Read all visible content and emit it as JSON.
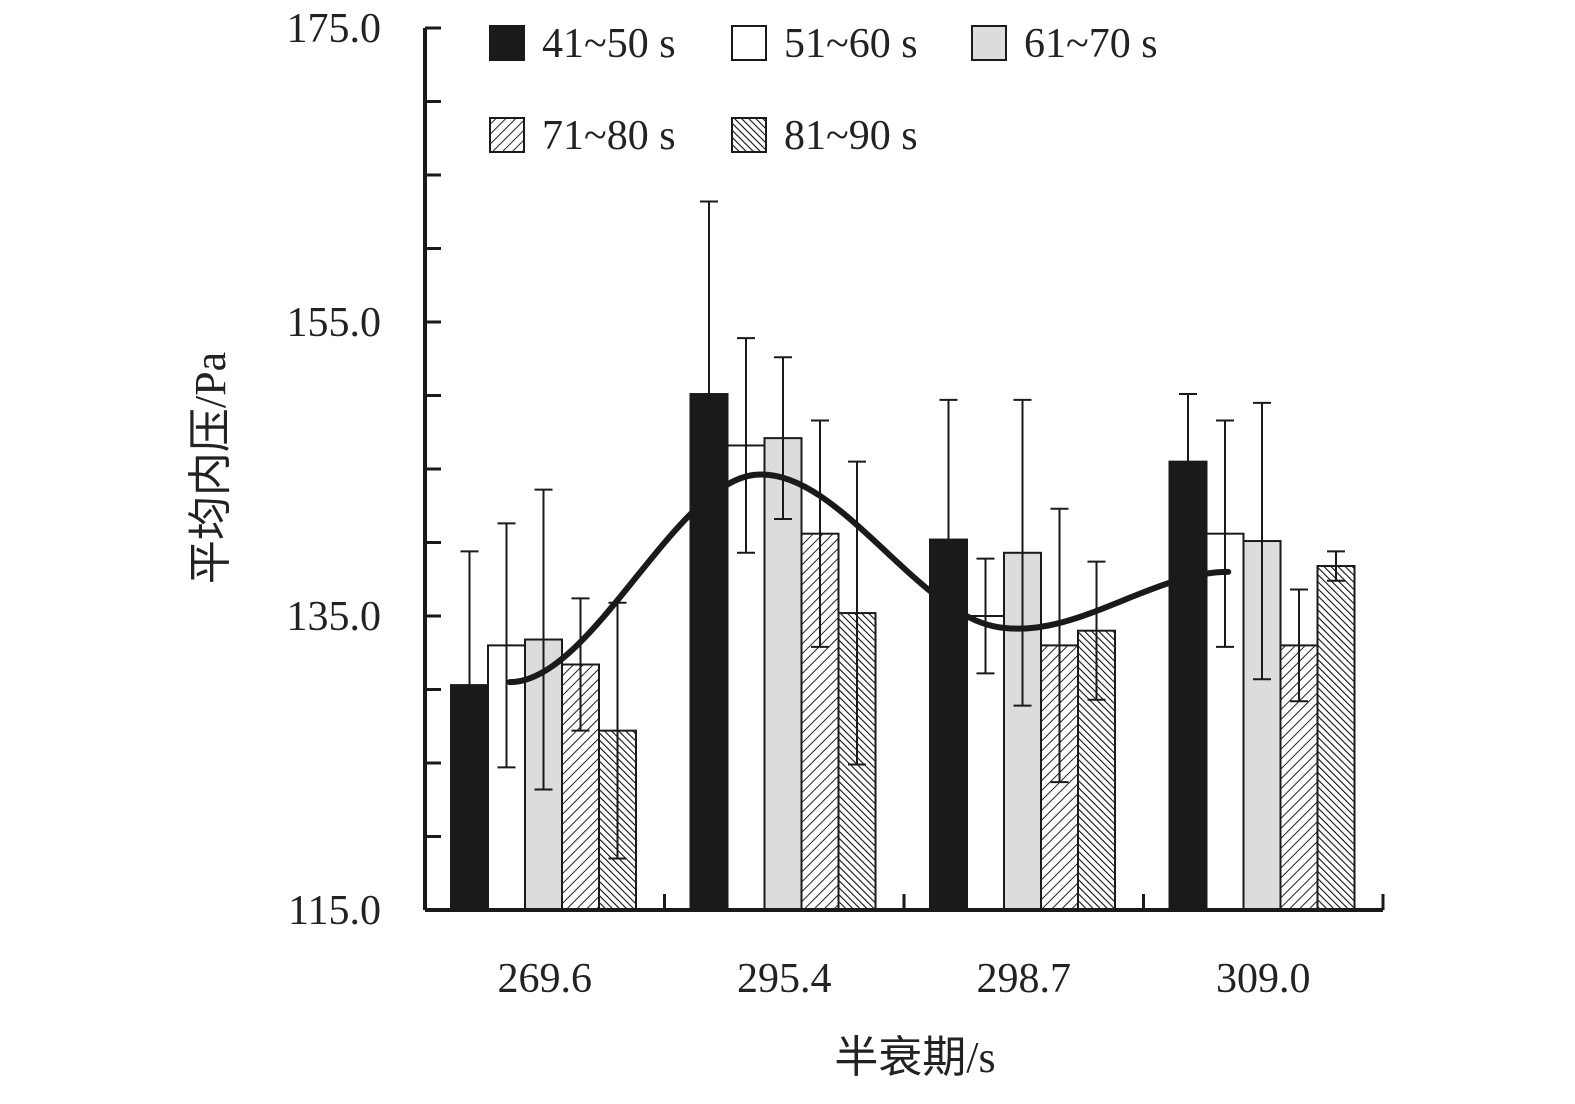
{
  "chart_data": {
    "type": "bar",
    "xlabel": "半衰期/s",
    "ylabel": "平均内压/Pa",
    "ylim": [
      115.0,
      175.0
    ],
    "yticks": [
      "115.0",
      "135.0",
      "155.0",
      "175.0"
    ],
    "grid": false,
    "legend_position": "top",
    "categories": [
      "269.6",
      "295.4",
      "298.7",
      "309.0"
    ],
    "series": [
      {
        "name": "41~50 s",
        "fill": "solid-black",
        "color": "#1a1a1a",
        "values": [
          130.3,
          150.1,
          140.2,
          145.5
        ],
        "errors": [
          9.1,
          13.1,
          9.5,
          4.6
        ]
      },
      {
        "name": "51~60 s",
        "fill": "white",
        "color": "#ffffff",
        "values": [
          133.0,
          146.6,
          135.0,
          140.6
        ],
        "errors": [
          8.3,
          7.3,
          3.9,
          7.7
        ]
      },
      {
        "name": "61~70 s",
        "fill": "light-gray",
        "color": "#dcdcdc",
        "values": [
          133.4,
          147.1,
          139.3,
          140.1
        ],
        "errors": [
          10.2,
          5.5,
          10.4,
          9.4
        ]
      },
      {
        "name": "71~80 s",
        "fill": "diagonal-hatch",
        "color": "#555555",
        "values": [
          131.7,
          140.6,
          133.0,
          133.0
        ],
        "errors": [
          4.5,
          7.7,
          9.3,
          3.8
        ]
      },
      {
        "name": "81~90 s",
        "fill": "dense-diagonal-hatch",
        "color": "#333333",
        "values": [
          127.2,
          135.2,
          134.0,
          138.4
        ],
        "errors": [
          8.7,
          10.3,
          4.7,
          1.0
        ]
      }
    ],
    "trend_line": {
      "type": "smooth",
      "x": [
        "269.6",
        "295.4",
        "298.7",
        "309.0"
      ],
      "y": [
        130.5,
        144.6,
        134.3,
        138.0
      ]
    }
  }
}
